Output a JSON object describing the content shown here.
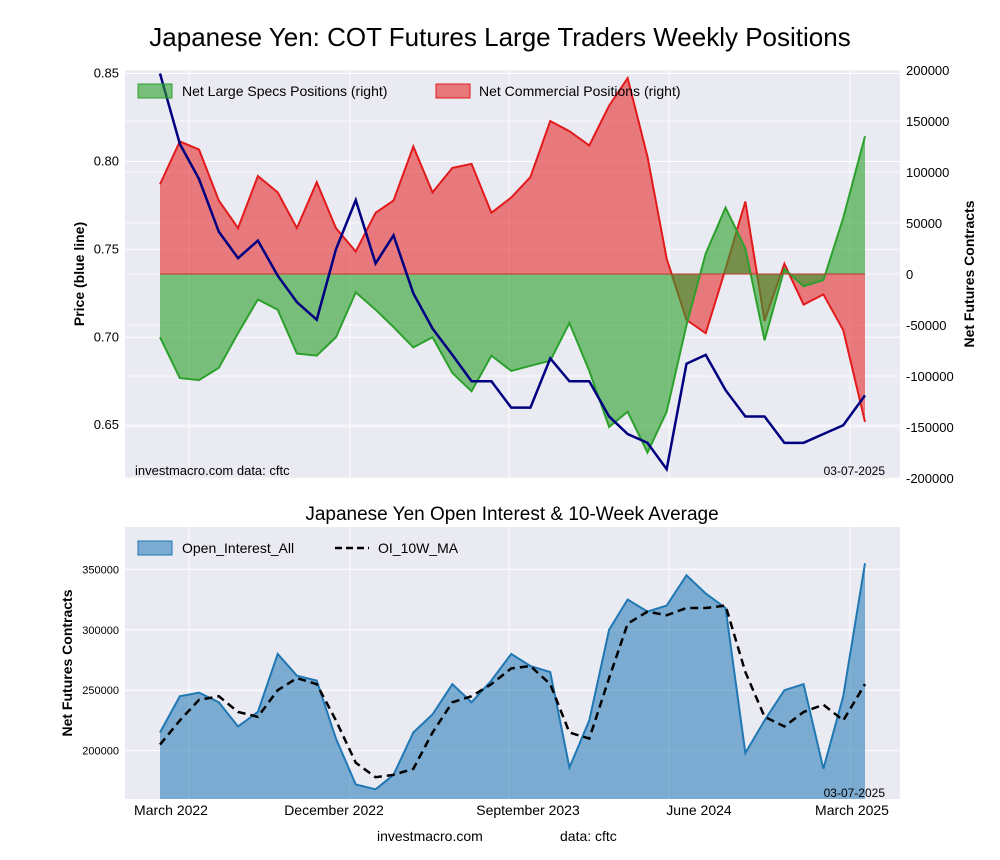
{
  "title": "Japanese Yen: COT Futures Large Traders Weekly Positions",
  "footer": {
    "source": "investmacro.com",
    "data": "data: cftc"
  },
  "colors": {
    "panel_bg": "#eaeaf2",
    "green": "#2ca02c",
    "red": "#e31a1c",
    "price": "#000080",
    "oi": "#1f77b4"
  },
  "chart_data": [
    {
      "type": "area",
      "title": "",
      "ylabel_left": "Price (blue line)",
      "ylabel_right": "Net Futures Contracts",
      "ylim_left": [
        0.62,
        0.852
      ],
      "ylim_right": [
        -200000,
        200000
      ],
      "yticks_left": [
        "0.85",
        "0.80",
        "0.75",
        "0.70",
        "0.65"
      ],
      "yticks_right": [
        "200000",
        "150000",
        "100000",
        "50000",
        "0",
        "-50000",
        "-100000",
        "-150000",
        "-200000"
      ],
      "legend_position": "top",
      "legend": [
        "Net Large Specs Positions (right)",
        "Net Commercial Positions (right)"
      ],
      "annotation_left": "investmacro.com   data: cftc",
      "annotation_right": "03-07-2025",
      "x": [
        "2022-03-01",
        "2022-04-01",
        "2022-05-01",
        "2022-06-01",
        "2022-07-01",
        "2022-08-01",
        "2022-09-01",
        "2022-10-01",
        "2022-11-01",
        "2022-12-01",
        "2023-01-01",
        "2023-02-01",
        "2023-03-01",
        "2023-04-01",
        "2023-05-01",
        "2023-06-01",
        "2023-07-01",
        "2023-08-01",
        "2023-09-01",
        "2023-10-01",
        "2023-11-01",
        "2023-12-01",
        "2024-01-01",
        "2024-02-01",
        "2024-03-01",
        "2024-04-01",
        "2024-05-01",
        "2024-06-01",
        "2024-07-01",
        "2024-08-01",
        "2024-09-01",
        "2024-10-01",
        "2024-11-01",
        "2024-12-01",
        "2025-01-01",
        "2025-02-01",
        "2025-03-07"
      ],
      "series": [
        {
          "name": "Net Large Specs Positions (right)",
          "axis": "right",
          "values": [
            -62000,
            -102000,
            -104000,
            -92000,
            -58000,
            -25000,
            -35000,
            -78000,
            -80000,
            -62000,
            -18000,
            -35000,
            -52000,
            -72000,
            -62000,
            -97000,
            -115000,
            -80000,
            -95000,
            -90000,
            -85000,
            -48000,
            -95000,
            -150000,
            -135000,
            -175000,
            -135000,
            -50000,
            20000,
            65000,
            25000,
            -65000,
            5000,
            -12000,
            -6000,
            55000,
            135000
          ]
        },
        {
          "name": "Net Commercial Positions (right)",
          "axis": "right",
          "values": [
            88000,
            130000,
            122000,
            72000,
            45000,
            96000,
            80000,
            45000,
            90000,
            45000,
            22000,
            60000,
            72000,
            125000,
            80000,
            104000,
            108000,
            60000,
            75000,
            95000,
            150000,
            140000,
            126000,
            165000,
            192000,
            115000,
            15000,
            -45000,
            -58000,
            5000,
            71000,
            -46000,
            10000,
            -30000,
            -20000,
            -55000,
            -145000
          ]
        },
        {
          "name": "Price",
          "axis": "left",
          "values": [
            0.85,
            0.81,
            0.79,
            0.76,
            0.745,
            0.755,
            0.735,
            0.72,
            0.71,
            0.75,
            0.778,
            0.742,
            0.758,
            0.725,
            0.705,
            0.69,
            0.675,
            0.675,
            0.66,
            0.66,
            0.688,
            0.675,
            0.675,
            0.655,
            0.645,
            0.64,
            0.625,
            0.685,
            0.69,
            0.67,
            0.655,
            0.655,
            0.64,
            0.64,
            0.645,
            0.65,
            0.667
          ]
        }
      ]
    },
    {
      "type": "area",
      "title": "Japanese Yen Open Interest & 10-Week Average",
      "ylabel": "Net Futures Contracts",
      "ylim": [
        160000,
        385000
      ],
      "yticks": [
        "350000",
        "300000",
        "250000",
        "200000"
      ],
      "legend_position": "top",
      "legend": [
        "Open_Interest_All",
        "OI_10W_MA"
      ],
      "annotation_right": "03-07-2025",
      "xtick_labels": [
        "March 2022",
        "December 2022",
        "September 2023",
        "June 2024",
        "March 2025"
      ],
      "x": [
        "2022-03-01",
        "2022-04-01",
        "2022-05-01",
        "2022-06-01",
        "2022-07-01",
        "2022-08-01",
        "2022-09-01",
        "2022-10-01",
        "2022-11-01",
        "2022-12-01",
        "2023-01-01",
        "2023-02-01",
        "2023-03-01",
        "2023-04-01",
        "2023-05-01",
        "2023-06-01",
        "2023-07-01",
        "2023-08-01",
        "2023-09-01",
        "2023-10-01",
        "2023-11-01",
        "2023-12-01",
        "2024-01-01",
        "2024-02-01",
        "2024-03-01",
        "2024-04-01",
        "2024-05-01",
        "2024-06-01",
        "2024-07-01",
        "2024-08-01",
        "2024-09-01",
        "2024-10-01",
        "2024-11-01",
        "2024-12-01",
        "2025-01-01",
        "2025-02-01",
        "2025-03-07"
      ],
      "series": [
        {
          "name": "Open_Interest_All",
          "values": [
            215000,
            245000,
            248000,
            240000,
            220000,
            232000,
            280000,
            262000,
            258000,
            210000,
            172000,
            168000,
            180000,
            215000,
            230000,
            255000,
            240000,
            258000,
            280000,
            270000,
            265000,
            186000,
            225000,
            300000,
            325000,
            315000,
            320000,
            345000,
            330000,
            318000,
            198000,
            225000,
            250000,
            255000,
            185000,
            245000,
            355000
          ]
        },
        {
          "name": "OI_10W_MA",
          "values": [
            205000,
            225000,
            242000,
            245000,
            232000,
            228000,
            250000,
            260000,
            255000,
            225000,
            190000,
            178000,
            180000,
            185000,
            215000,
            240000,
            245000,
            255000,
            268000,
            270000,
            255000,
            215000,
            210000,
            260000,
            305000,
            315000,
            312000,
            318000,
            318000,
            320000,
            265000,
            228000,
            220000,
            232000,
            238000,
            225000,
            255000
          ]
        }
      ]
    }
  ]
}
